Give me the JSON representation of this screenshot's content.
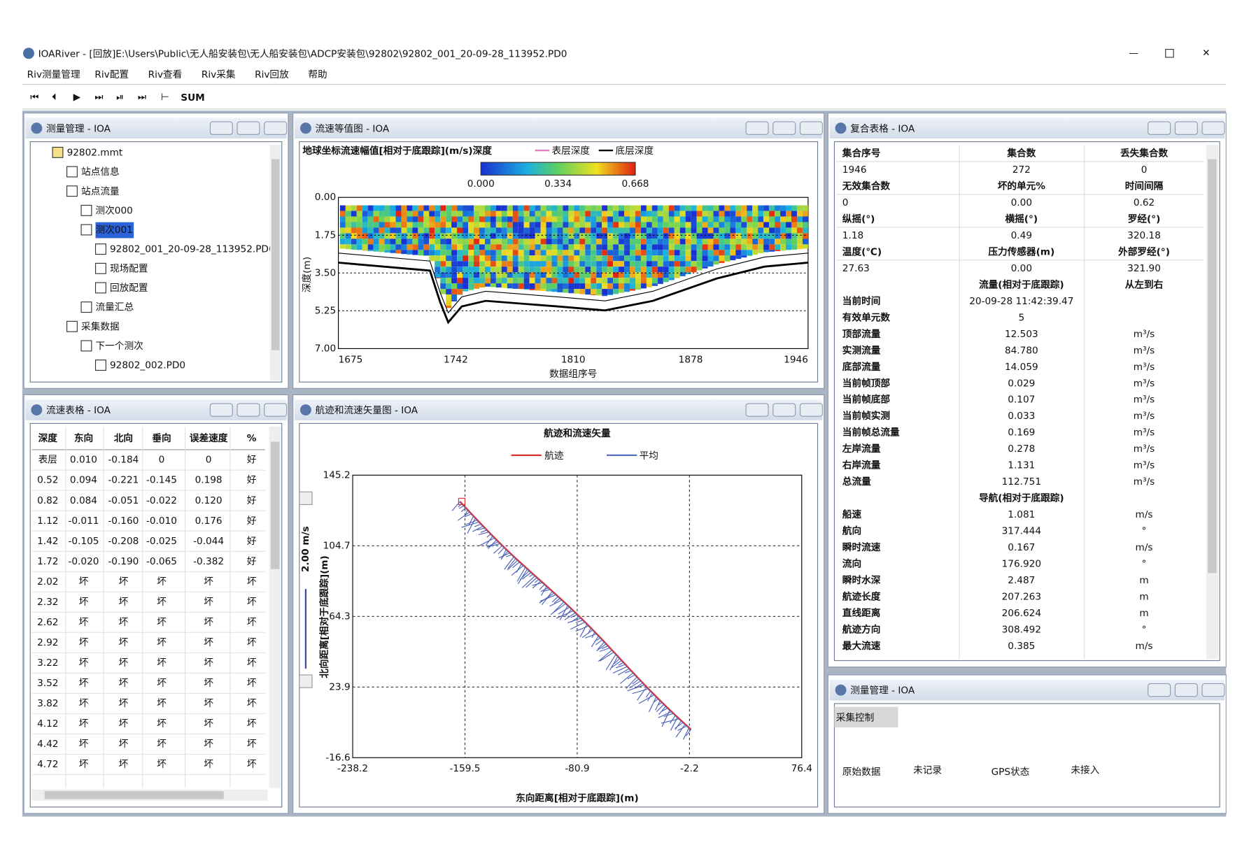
{
  "window": {
    "title": "IOARiver - [回放]E:\\Users\\Public\\无人船安装包\\无人船安装包\\ADCP安装包\\92802\\92802_001_20-09-28_113952.PD0",
    "menu": [
      "Riv测量管理",
      "Riv配置",
      "Riv查看",
      "Riv采集",
      "Riv回放",
      "帮助"
    ],
    "toolbar_label": "SUM"
  },
  "tree_panel": {
    "title": "测量管理 - IOA",
    "nodes": [
      "92802.mmt",
      "站点信息",
      "站点流量",
      "测次000",
      "测次001",
      "92802_001_20-09-28_113952.PD0",
      "现场配置",
      "回放配置",
      "流量汇总",
      "采集数据",
      "下一个测次",
      "92802_002.PD0"
    ]
  },
  "contour_panel": {
    "title": "流速等值图 - IOA",
    "chart_title": "地球坐标流速幅值[相对于底跟踪](m/s)深度",
    "legend": [
      "表层深度",
      "底层深度"
    ],
    "colorbar_ticks": [
      "0.000",
      "0.334",
      "0.668"
    ],
    "y_label": "深度(m)",
    "y_ticks": [
      "0.00",
      "1.75",
      "3.50",
      "5.25",
      "7.00"
    ],
    "x_label": "数据组序号",
    "x_ticks": [
      "1675",
      "1742",
      "1810",
      "1878",
      "1946"
    ]
  },
  "composite_panel": {
    "title": "复合表格 - IOA",
    "rows": [
      [
        "集合序号",
        "集合数",
        "丢失集合数"
      ],
      [
        "1946",
        "272",
        "0"
      ],
      [
        "无效集合数",
        "坏的单元%",
        "时间间隔"
      ],
      [
        "0",
        "0.00",
        "0.62"
      ],
      [
        "纵摇(°)",
        "横摇(°)",
        "罗经(°)"
      ],
      [
        "1.18",
        "0.49",
        "320.18"
      ],
      [
        "温度(℃)",
        "压力传感器(m)",
        "外部罗经(°)"
      ],
      [
        "27.63",
        "0.00",
        "321.90"
      ],
      [
        null,
        "流量(相对于底跟踪)",
        "从左到右"
      ],
      [
        "当前时间",
        "20-09-28 11:42:39.47",
        null
      ],
      [
        "有效单元数",
        "5",
        null
      ],
      [
        "顶部流量",
        "12.503",
        "m³/s"
      ],
      [
        "实测流量",
        "84.780",
        "m³/s"
      ],
      [
        "底部流量",
        "14.059",
        "m³/s"
      ],
      [
        "当前帧顶部",
        "0.029",
        "m³/s"
      ],
      [
        "当前帧底部",
        "0.107",
        "m³/s"
      ],
      [
        "当前帧实测",
        "0.033",
        "m³/s"
      ],
      [
        "当前帧总流量",
        "0.169",
        "m³/s"
      ],
      [
        "左岸流量",
        "0.278",
        "m³/s"
      ],
      [
        "右岸流量",
        "1.131",
        "m³/s"
      ],
      [
        "总流量",
        "112.751",
        "m³/s"
      ],
      [
        null,
        "导航(相对于底跟踪)",
        null
      ],
      [
        "船速",
        "1.081",
        "m/s"
      ],
      [
        "航向",
        "317.444",
        "°"
      ],
      [
        "瞬时流速",
        "0.167",
        "m/s"
      ],
      [
        "流向",
        "176.920",
        "°"
      ],
      [
        "瞬时水深",
        "2.487",
        "m"
      ],
      [
        "航迹长度",
        "207.263",
        "m"
      ],
      [
        "直线距离",
        "206.624",
        "m"
      ],
      [
        "航迹方向",
        "308.492",
        "°"
      ],
      [
        "最大流速",
        "0.385",
        "m/s"
      ]
    ]
  },
  "velocity_panel": {
    "title": "流速表格 - IOA",
    "header": [
      "深度",
      "东向",
      "北向",
      "垂向",
      "误差速度",
      "%"
    ],
    "rows": [
      [
        "表层",
        "0.010",
        "-0.184",
        "0",
        "0",
        "好"
      ],
      [
        "0.52",
        "0.094",
        "-0.221",
        "-0.145",
        "0.198",
        "好"
      ],
      [
        "0.82",
        "0.084",
        "-0.051",
        "-0.022",
        "0.120",
        "好"
      ],
      [
        "1.12",
        "-0.011",
        "-0.160",
        "-0.010",
        "0.176",
        "好"
      ],
      [
        "1.42",
        "-0.105",
        "-0.208",
        "-0.025",
        "-0.044",
        "好"
      ],
      [
        "1.72",
        "-0.020",
        "-0.190",
        "-0.065",
        "-0.382",
        "好"
      ],
      [
        "2.02",
        "坏",
        "坏",
        "坏",
        "坏",
        "坏"
      ],
      [
        "2.32",
        "坏",
        "坏",
        "坏",
        "坏",
        "坏"
      ],
      [
        "2.62",
        "坏",
        "坏",
        "坏",
        "坏",
        "坏"
      ],
      [
        "2.92",
        "坏",
        "坏",
        "坏",
        "坏",
        "坏"
      ],
      [
        "3.22",
        "坏",
        "坏",
        "坏",
        "坏",
        "坏"
      ],
      [
        "3.52",
        "坏",
        "坏",
        "坏",
        "坏",
        "坏"
      ],
      [
        "3.82",
        "坏",
        "坏",
        "坏",
        "坏",
        "坏"
      ],
      [
        "4.12",
        "坏",
        "坏",
        "坏",
        "坏",
        "坏"
      ],
      [
        "4.42",
        "坏",
        "坏",
        "坏",
        "坏",
        "坏"
      ],
      [
        "4.72",
        "坏",
        "坏",
        "坏",
        "坏",
        "坏"
      ]
    ]
  },
  "track_panel": {
    "title": "航迹和流速矢量图 - IOA",
    "chart_title": "航迹和流速矢量",
    "legend": [
      "航迹",
      "平均"
    ],
    "scale_label": "2.00 m/s",
    "y_label": "北向距离[相对于底跟踪](m)",
    "y_ticks": [
      "145.2",
      "104.7",
      "64.3",
      "23.9",
      "-16.6"
    ],
    "x_label": "东向距离[相对于底跟踪](m)",
    "x_ticks": [
      "-238.2",
      "-159.5",
      "-80.9",
      "-2.2",
      "76.4"
    ]
  },
  "control_panel": {
    "title": "测量管理 - IOA",
    "heading": "采集控制",
    "raw_label": "原始数据",
    "raw_status": "未记录",
    "gps_label": "GPS状态",
    "gps_status": "未接入"
  }
}
